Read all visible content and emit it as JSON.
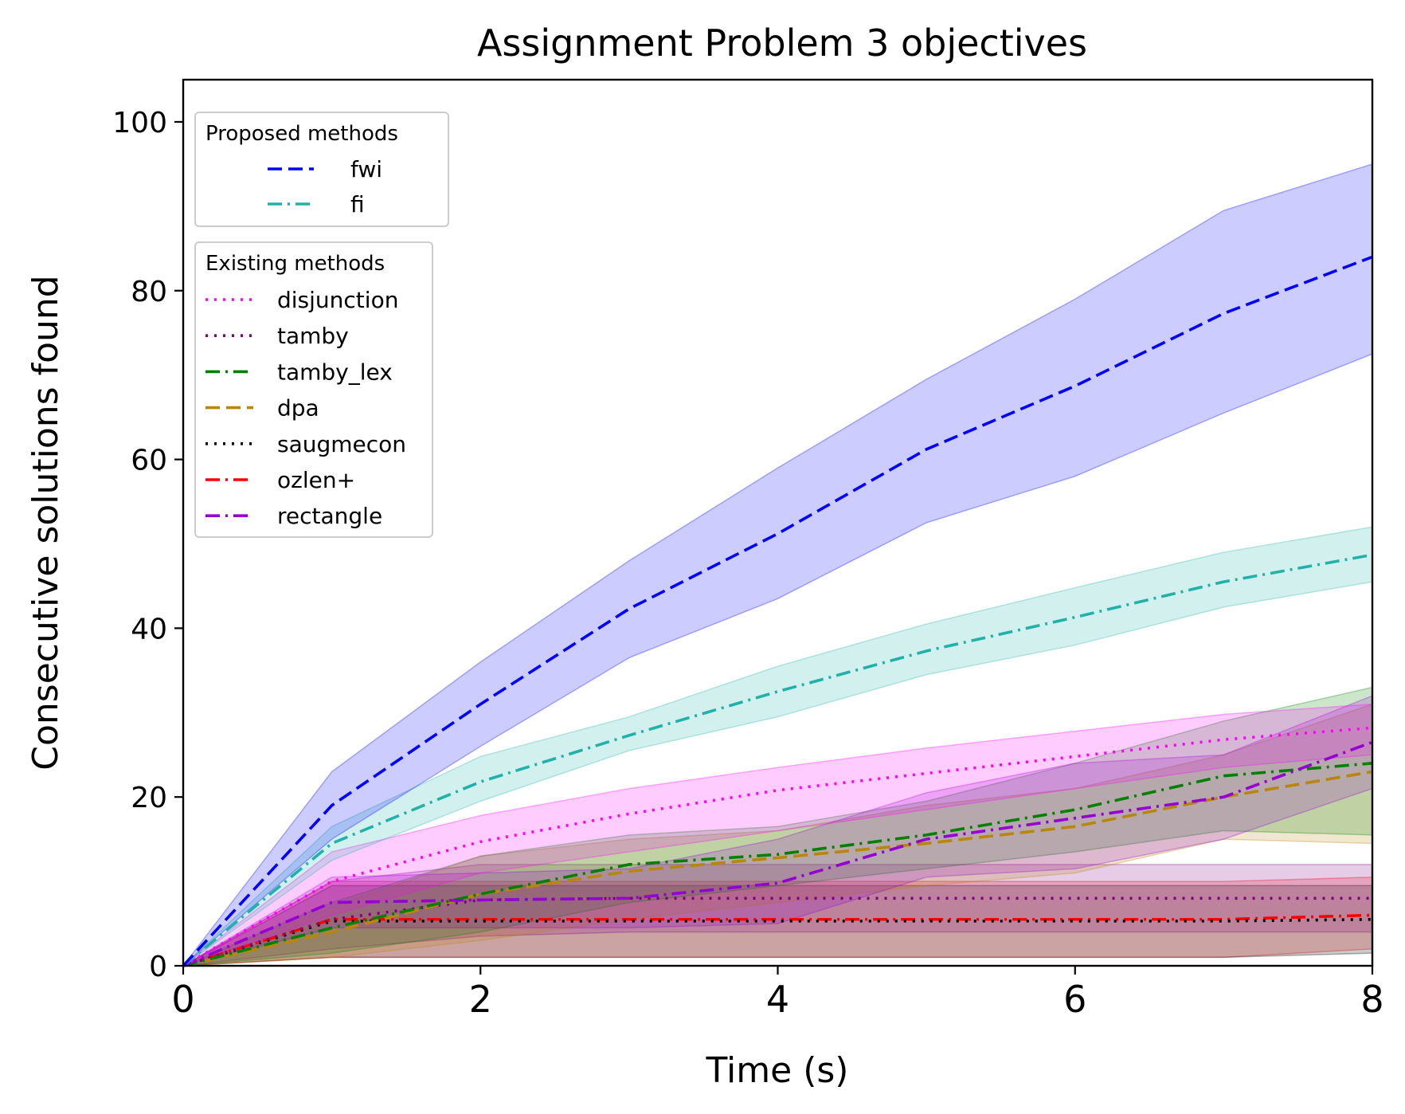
{
  "chart_data": {
    "type": "line",
    "title": "Assignment Problem 3 objectives",
    "xlabel": "Time (s)",
    "ylabel": "Consecutive solutions found",
    "xlim": [
      0,
      8
    ],
    "ylim": [
      0,
      105
    ],
    "xticks": [
      0,
      2,
      4,
      6,
      8
    ],
    "yticks": [
      0,
      20,
      40,
      60,
      80,
      100
    ],
    "grid": false,
    "x": [
      0,
      1,
      2,
      3,
      4,
      5,
      6,
      7,
      8
    ],
    "legends": [
      {
        "title": "Proposed methods",
        "placement": "upper-left",
        "series": [
          "fwi",
          "fi"
        ]
      },
      {
        "title": "Existing methods",
        "placement": "upper-left",
        "series": [
          "disjunction",
          "tamby",
          "tamby_lex",
          "dpa",
          "saugmecon",
          "ozlen+",
          "rectangle"
        ]
      }
    ],
    "series": [
      {
        "name": "ozlen+",
        "color": "#ff0000",
        "style": "dashdot",
        "values": [
          0,
          5.5,
          5.5,
          5.5,
          5.5,
          5.5,
          5.5,
          5.5,
          6
        ],
        "lower": [
          0,
          1,
          1,
          1,
          1,
          1,
          1,
          1,
          2
        ],
        "upper": [
          0,
          10,
          10,
          10,
          10,
          10,
          10,
          10,
          10.5
        ]
      },
      {
        "name": "saugmecon",
        "color": "#000000",
        "style": "dotted",
        "values": [
          0,
          5.3,
          5.3,
          5.3,
          5.3,
          5.3,
          5.3,
          5.3,
          5.5
        ],
        "lower": [
          0,
          1,
          1,
          1,
          1,
          1,
          1,
          1,
          1.5
        ],
        "upper": [
          0,
          9.5,
          9.5,
          9.5,
          9.5,
          9.5,
          9.5,
          9.5,
          9.5
        ]
      },
      {
        "name": "tamby",
        "color": "#800080",
        "style": "dotted",
        "values": [
          0,
          5.5,
          7.8,
          8,
          8,
          8,
          8,
          8,
          8
        ],
        "lower": [
          0,
          2,
          3.5,
          4,
          4,
          4,
          4,
          4,
          4
        ],
        "upper": [
          0,
          10,
          12,
          12,
          12,
          12,
          12,
          12,
          12
        ]
      },
      {
        "name": "dpa",
        "color": "#b8860b",
        "style": "dashed",
        "values": [
          0,
          4,
          8.5,
          11.2,
          12.8,
          14.5,
          16.5,
          20,
          23
        ],
        "lower": [
          0,
          1,
          3,
          5.5,
          7.5,
          9.5,
          11,
          15,
          14.5
        ],
        "upper": [
          0,
          7,
          13,
          15,
          16,
          19,
          21,
          25,
          31
        ]
      },
      {
        "name": "tamby_lex",
        "color": "#008000",
        "style": "dashdot",
        "values": [
          0,
          4.5,
          8.5,
          12,
          13.2,
          15.5,
          18.5,
          22.5,
          24
        ],
        "lower": [
          0,
          1.5,
          4,
          7.5,
          9.5,
          11.5,
          13.5,
          16,
          15.5
        ],
        "upper": [
          0,
          7.5,
          13,
          15.5,
          16.5,
          19.5,
          24,
          29,
          33
        ]
      },
      {
        "name": "rectangle",
        "color": "#9400d3",
        "style": "dashdot",
        "values": [
          0,
          7.5,
          7.8,
          8,
          9.8,
          15,
          17.5,
          20,
          26.5
        ],
        "lower": [
          0,
          4.5,
          4.5,
          4.5,
          5,
          10.5,
          11.5,
          15,
          21
        ],
        "upper": [
          0,
          10.5,
          11,
          11.5,
          15,
          20.5,
          24,
          25,
          32
        ]
      },
      {
        "name": "disjunction",
        "color": "#ff00ff",
        "style": "dotted",
        "values": [
          0,
          10,
          14.7,
          18,
          20.8,
          22.8,
          24.8,
          26.8,
          28.2
        ],
        "lower": [
          0,
          6,
          11,
          13.5,
          16,
          18.5,
          21,
          23.5,
          25
        ],
        "upper": [
          0,
          13.5,
          17.8,
          21,
          23.5,
          25.8,
          27.8,
          29.8,
          31
        ]
      },
      {
        "name": "fi",
        "color": "#20b2aa",
        "style": "dashdot",
        "values": [
          0,
          14.5,
          21.8,
          27.3,
          32.5,
          37.3,
          41.3,
          45.5,
          48.7
        ],
        "lower": [
          0,
          12.5,
          19.5,
          25.5,
          29.5,
          34.5,
          38,
          42.5,
          45.5
        ],
        "upper": [
          0,
          16.5,
          24.8,
          29.5,
          35.5,
          40.5,
          44.8,
          49,
          52
        ]
      },
      {
        "name": "fwi",
        "color": "#0000ff",
        "style": "dashed",
        "values": [
          0,
          19,
          31,
          42.3,
          51.2,
          61.2,
          68.7,
          77.3,
          84
        ],
        "lower": [
          0,
          15,
          26,
          36.5,
          43.5,
          52.5,
          58,
          65.5,
          72.5
        ],
        "upper": [
          0,
          23,
          36,
          48,
          59,
          69.5,
          79,
          89.5,
          95
        ]
      }
    ]
  }
}
